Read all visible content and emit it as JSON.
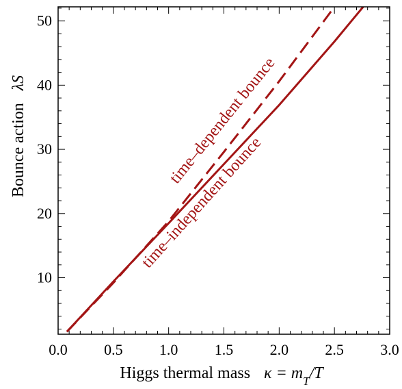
{
  "chart_data": {
    "type": "line",
    "xlabel": "Higgs thermal mass",
    "xlabel_math": "κ = m_T/T",
    "ylabel": "Bounce action",
    "ylabel_math": "λS",
    "xlim": [
      0.0,
      3.0
    ],
    "ylim": [
      1.2,
      52.2
    ],
    "x_ticks": [
      "0.0",
      "0.5",
      "1.0",
      "1.5",
      "2.0",
      "2.5",
      "3.0"
    ],
    "y_ticks": [
      "10",
      "20",
      "30",
      "40",
      "50"
    ],
    "grid": false,
    "series": [
      {
        "key": "dependent",
        "style": "dashed",
        "color": "#a31515",
        "x": [
          0.08,
          0.5,
          1.0,
          1.5,
          2.0,
          2.5
        ],
        "y": [
          1.6,
          9.2,
          18.8,
          29.6,
          40.6,
          52.2
        ]
      },
      {
        "key": "independent",
        "style": "solid",
        "color": "#a31515",
        "x": [
          0.08,
          0.5,
          1.0,
          1.5,
          2.0,
          2.5,
          2.76
        ],
        "y": [
          1.6,
          9.4,
          18.5,
          27.7,
          36.9,
          46.8,
          52.2
        ]
      }
    ],
    "annotations": [
      {
        "text": "time–dependent bounce",
        "x": 1.52,
        "y": 34.0,
        "angle": -51
      },
      {
        "text": "time–independent bounce",
        "x": 1.33,
        "y": 21.2,
        "angle": -48
      }
    ]
  }
}
